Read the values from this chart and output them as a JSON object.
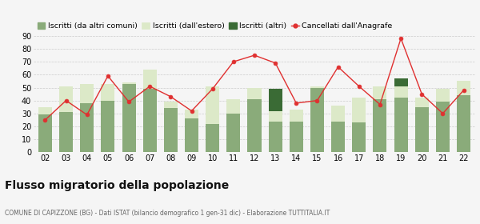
{
  "years": [
    "02",
    "03",
    "04",
    "05",
    "06",
    "07",
    "08",
    "09",
    "10",
    "11",
    "12",
    "13",
    "14",
    "15",
    "16",
    "17",
    "18",
    "19",
    "20",
    "21",
    "22"
  ],
  "iscritti_comuni": [
    29,
    31,
    38,
    40,
    53,
    49,
    34,
    26,
    22,
    30,
    41,
    24,
    24,
    50,
    24,
    23,
    41,
    42,
    35,
    39,
    44
  ],
  "iscritti_estero": [
    6,
    20,
    15,
    13,
    1,
    15,
    5,
    7,
    29,
    11,
    9,
    8,
    9,
    1,
    12,
    19,
    10,
    9,
    7,
    10,
    11
  ],
  "iscritti_altri": [
    0,
    0,
    0,
    0,
    0,
    0,
    0,
    0,
    0,
    0,
    0,
    17,
    0,
    0,
    0,
    0,
    0,
    6,
    0,
    0,
    0
  ],
  "cancellati": [
    25,
    40,
    29,
    59,
    39,
    51,
    43,
    32,
    49,
    70,
    75,
    69,
    38,
    40,
    66,
    51,
    37,
    88,
    45,
    30,
    48
  ],
  "color_comuni": "#8aab7a",
  "color_estero": "#dce9c8",
  "color_altri": "#3a6b35",
  "color_cancellati": "#e03030",
  "color_grid": "#cccccc",
  "ylim": [
    0,
    90
  ],
  "yticks": [
    0,
    10,
    20,
    30,
    40,
    50,
    60,
    70,
    80,
    90
  ],
  "title": "Flusso migratorio della popolazione",
  "subtitle": "COMUNE DI CAPIZZONE (BG) - Dati ISTAT (bilancio demografico 1 gen-31 dic) - Elaborazione TUTTITALIA.IT",
  "legend_labels": [
    "Iscritti (da altri comuni)",
    "Iscritti (dall'estero)",
    "Iscritti (altri)",
    "Cancellati dall'Anagrafe"
  ],
  "bg_color": "#f5f5f5"
}
